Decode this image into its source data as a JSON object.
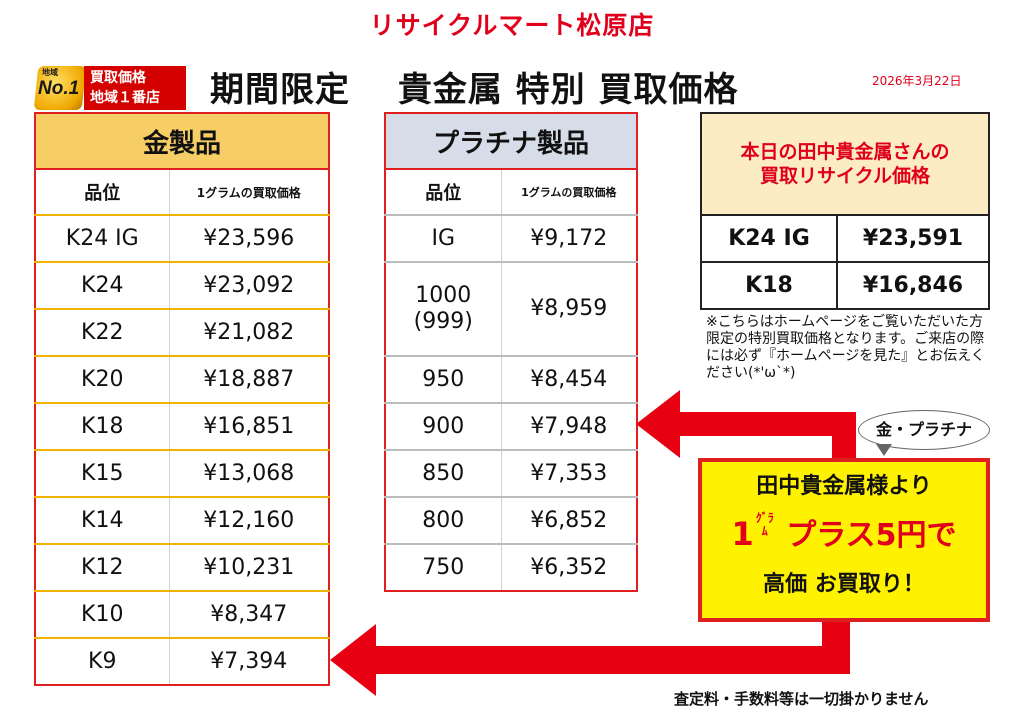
{
  "store_title": "リサイクルマート松原店",
  "badge": {
    "small": "地域",
    "big": "No.1",
    "line1": "買取価格",
    "line2": "地域１番店"
  },
  "main_heading": "期間限定　 貴金属 特別 買取価格",
  "date": "2026年3月22日",
  "gold_table": {
    "title": "金製品",
    "col_grade": "品位",
    "col_price": "1グラムの買取価格",
    "rows": [
      {
        "grade": "K24 IG",
        "price": "¥23,596"
      },
      {
        "grade": "K24",
        "price": "¥23,092"
      },
      {
        "grade": "K22",
        "price": "¥21,082"
      },
      {
        "grade": "K20",
        "price": "¥18,887"
      },
      {
        "grade": "K18",
        "price": "¥16,851"
      },
      {
        "grade": "K15",
        "price": "¥13,068"
      },
      {
        "grade": "K14",
        "price": "¥12,160"
      },
      {
        "grade": "K12",
        "price": "¥10,231"
      },
      {
        "grade": "K10",
        "price": "¥8,347"
      },
      {
        "grade": "K9",
        "price": "¥7,394"
      }
    ]
  },
  "platinum_table": {
    "title": "プラチナ製品",
    "col_grade": "品位",
    "col_price": "1グラムの買取価格",
    "rows": [
      {
        "grade": "IG",
        "price": "¥9,172"
      },
      {
        "grade": "1000",
        "grade2": "(999)",
        "price": "¥8,959"
      },
      {
        "grade": "950",
        "price": "¥8,454"
      },
      {
        "grade": "900",
        "price": "¥7,948"
      },
      {
        "grade": "850",
        "price": "¥7,353"
      },
      {
        "grade": "800",
        "price": "¥6,852"
      },
      {
        "grade": "750",
        "price": "¥6,352"
      }
    ]
  },
  "reference_table": {
    "title_line1": "本日の田中貴金属さんの",
    "title_line2": "買取リサイクル価格",
    "rows": [
      {
        "grade": "K24 IG",
        "price": "¥23,591"
      },
      {
        "grade": "K18",
        "price": "¥16,846"
      }
    ]
  },
  "note": "※こちらはホームページをご覧いただいた方限定の特別買取価格となります。ご来店の際には必ず『ホームページを見た』とお伝えください(*'ω`*)",
  "bubble": "金・プラチナ",
  "promo": {
    "line1": "田中貴金属様より",
    "line2_num": "1",
    "line2_unit_top": "ｸﾞﾗ",
    "line2_unit_bottom": "ﾑ",
    "line2_text": "プラス5円で",
    "line3": "高価 お買取り！"
  },
  "footer": "査定料・手数料等は一切掛かりません",
  "colors": {
    "red": "#e0001b",
    "gold_header": "#f7cd66",
    "platinum_header": "#d7dde8",
    "promo_bg": "#fff200"
  }
}
